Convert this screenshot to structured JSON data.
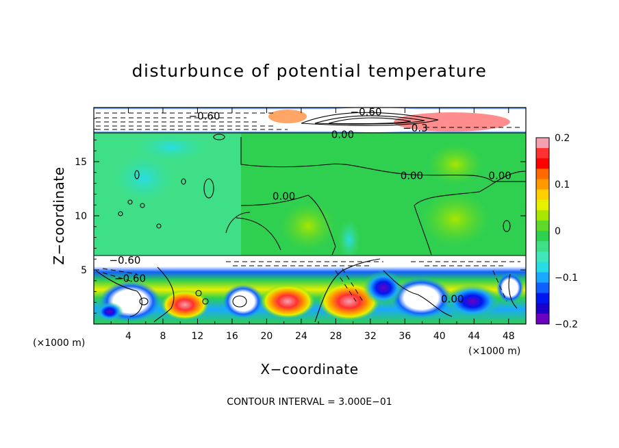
{
  "chart_data": {
    "type": "heatmap",
    "title": "disturbunce of potential temperature",
    "xlabel": "X−coordinate",
    "ylabel": "Z−coordinate",
    "x_unit_label": "(×1000 m)",
    "y_unit_label": "(×1000 m)",
    "x_range": [
      0,
      50
    ],
    "y_range": [
      0,
      20
    ],
    "x_ticks": [
      4,
      8,
      12,
      16,
      20,
      24,
      28,
      32,
      36,
      40,
      44,
      48
    ],
    "x_tick_labels": [
      "4",
      "8",
      "12",
      "16",
      "20",
      "24",
      "28",
      "32",
      "36",
      "40",
      "44",
      "48"
    ],
    "y_ticks": [
      5,
      10,
      15
    ],
    "y_tick_labels": [
      "5",
      "10",
      "15"
    ],
    "colorbar": {
      "range": [
        -0.2,
        0.2
      ],
      "tick_values": [
        0.2,
        0.1,
        0,
        -0.1,
        -0.2
      ],
      "tick_labels": [
        "0.2",
        "0.1",
        "0",
        "−0.1",
        "−0.2"
      ],
      "colors": [
        "#f4a0b0",
        "#ff3030",
        "#ff0000",
        "#ff6a00",
        "#ff9a00",
        "#ffcf00",
        "#e8f000",
        "#a8e600",
        "#60d82a",
        "#2fd04f",
        "#3edf86",
        "#3fe6b8",
        "#28dce6",
        "#1aa8ff",
        "#1060ff",
        "#0018f0",
        "#1a00c8",
        "#6a00c0"
      ]
    },
    "contour_labels": [
      {
        "text": "−0.60",
        "x": 12.8,
        "y": 19.2
      },
      {
        "text": "−0.60",
        "x": 31.5,
        "y": 19.6
      },
      {
        "text": "0.00",
        "x": 28.8,
        "y": 17.5
      },
      {
        "text": "−0.3",
        "x": 37.2,
        "y": 18.1
      },
      {
        "text": "0.00",
        "x": 36.8,
        "y": 13.7
      },
      {
        "text": "0.00",
        "x": 47.0,
        "y": 13.7
      },
      {
        "text": "0.00",
        "x": 22.0,
        "y": 11.8
      },
      {
        "text": "−0.60",
        "x": 3.6,
        "y": 5.9
      },
      {
        "text": "−0.60",
        "x": 4.2,
        "y": 4.2
      },
      {
        "text": "0.00",
        "x": 41.5,
        "y": 2.3
      }
    ],
    "contour_interval_text": "CONTOUR INTERVAL =  3.000E−01",
    "legend": "none",
    "grid": false
  }
}
